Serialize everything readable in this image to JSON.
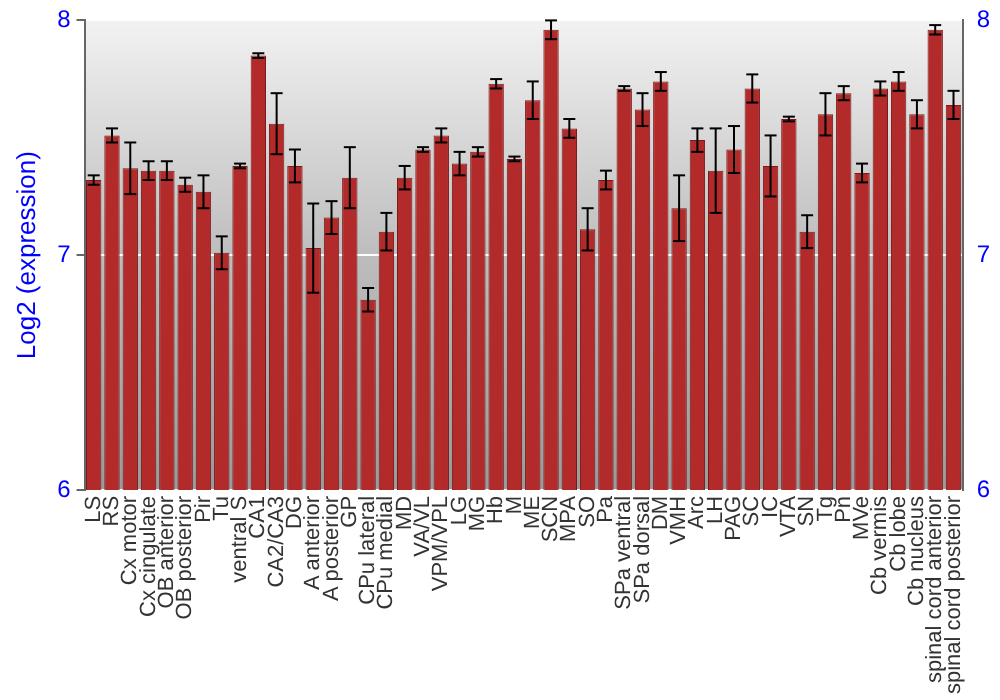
{
  "chart_data": {
    "type": "bar",
    "ylabel": "Log2 (expression)",
    "categories": [
      "LS",
      "RS",
      "Cx motor",
      "Cx cingulate",
      "OB anterior",
      "OB posterior",
      "Pir",
      "Tu",
      "ventral S",
      "CA1",
      "CA2/CA3",
      "DG",
      "A anterior",
      "A posterior",
      "GP",
      "CPu lateral",
      "CPu medial",
      "MD",
      "VA/VL",
      "VPM/VPL",
      "LG",
      "MG",
      "Hb",
      "M",
      "ME",
      "SCN",
      "MPA",
      "SO",
      "Pa",
      "SPa ventral",
      "SPa dorsal",
      "DM",
      "VMH",
      "Arc",
      "LH",
      "PAG",
      "SC",
      "IC",
      "VTA",
      "SN",
      "Tg",
      "Pn",
      "MVe",
      "Cb vermis",
      "Cb lobe",
      "Cb nucleus",
      "spinal cord anterior",
      "spinal cord posterior"
    ],
    "series": [
      {
        "color": "#b22a2a",
        "values": [
          7.32,
          7.51,
          7.37,
          7.36,
          7.36,
          7.3,
          7.27,
          7.01,
          7.38,
          7.85,
          7.56,
          7.38,
          7.03,
          7.16,
          7.33,
          6.81,
          7.1,
          7.33,
          7.45,
          7.51,
          7.39,
          7.44,
          7.73,
          7.41,
          7.66,
          7.96,
          7.54,
          7.11,
          7.32,
          7.71,
          7.62,
          7.74,
          7.2,
          7.49,
          7.36,
          7.45,
          7.71,
          7.38,
          7.58,
          7.1,
          7.6,
          7.69,
          7.35,
          7.71,
          7.74,
          7.6,
          7.96,
          7.64
        ],
        "errors": [
          0.02,
          0.03,
          0.11,
          0.04,
          0.04,
          0.03,
          0.07,
          0.07,
          0.01,
          0.01,
          0.13,
          0.07,
          0.19,
          0.07,
          0.13,
          0.05,
          0.08,
          0.05,
          0.01,
          0.03,
          0.05,
          0.02,
          0.02,
          0.01,
          0.08,
          0.04,
          0.04,
          0.09,
          0.04,
          0.01,
          0.07,
          0.04,
          0.14,
          0.05,
          0.18,
          0.1,
          0.06,
          0.13,
          0.01,
          0.07,
          0.09,
          0.03,
          0.04,
          0.03,
          0.04,
          0.06,
          0.02,
          0.06
        ]
      }
    ],
    "ylim": [
      6,
      8
    ],
    "yticks": [
      6,
      7,
      8
    ],
    "y2lim": [
      6,
      8
    ],
    "y2ticks": [
      6,
      7,
      8
    ],
    "grid": "y",
    "legend": false
  }
}
